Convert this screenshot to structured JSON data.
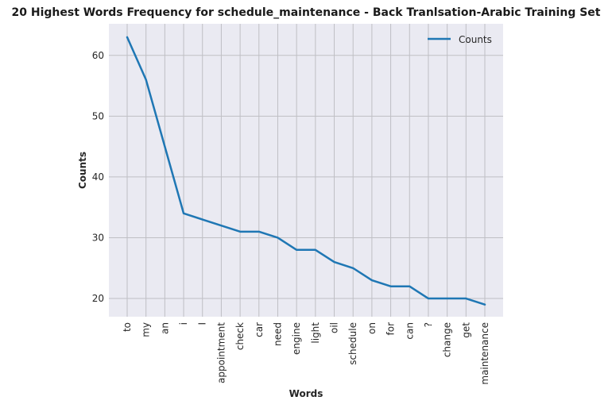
{
  "chart_data": {
    "type": "line",
    "title": "20 Highest Words Frequency for schedule_maintenance - Back Tranlsation-Arabic Training Set",
    "xlabel": "Words",
    "ylabel": "Counts",
    "categories": [
      "to",
      "my",
      "an",
      "i",
      "I",
      "appointment",
      "check",
      "car",
      "need",
      "engine",
      "light",
      "oil",
      "schedule",
      "on",
      "for",
      "can",
      "?",
      "change",
      "get",
      "maintenance"
    ],
    "series": [
      {
        "name": "Counts",
        "values": [
          63,
          56,
          45,
          34,
          33,
          32,
          31,
          31,
          30,
          28,
          28,
          26,
          25,
          23,
          22,
          22,
          20,
          20,
          20,
          19
        ]
      }
    ],
    "ylim": [
      17,
      65.2
    ],
    "yticks": [
      20,
      30,
      40,
      50,
      60
    ],
    "grid": true,
    "legend": "top-right",
    "colors": {
      "line": "#1f77b4",
      "plot_bg": "#eaeaf2",
      "grid": "#bfbfc4"
    }
  }
}
